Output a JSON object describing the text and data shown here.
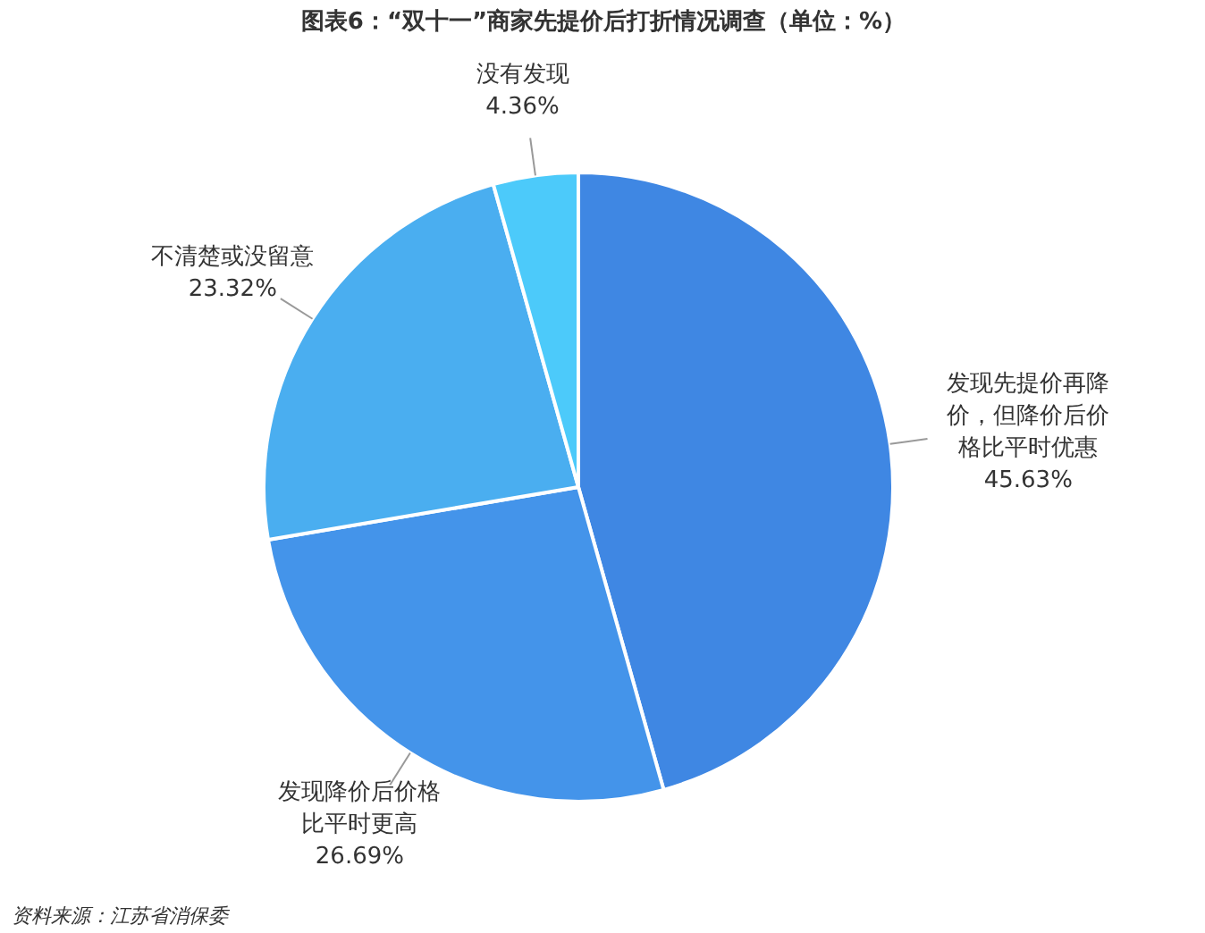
{
  "chart_data": {
    "type": "pie",
    "title": "图表6：“双十一”商家先提价后打折情况调查（单位：%）",
    "categories": [
      "发现先提价再降价，但降价后价格比平时优惠",
      "发现降价后价格比平时更高",
      "不清楚或没留意",
      "没有发现"
    ],
    "values": [
      45.63,
      26.69,
      23.32,
      4.36
    ],
    "colors": [
      "#3f87e3",
      "#4494ea",
      "#4aaef0",
      "#4ccafa"
    ],
    "value_labels": [
      "45.63%",
      "26.69%",
      "23.32%",
      "4.36%"
    ],
    "annotations": [
      "资料来源：江苏省消保委"
    ]
  }
}
